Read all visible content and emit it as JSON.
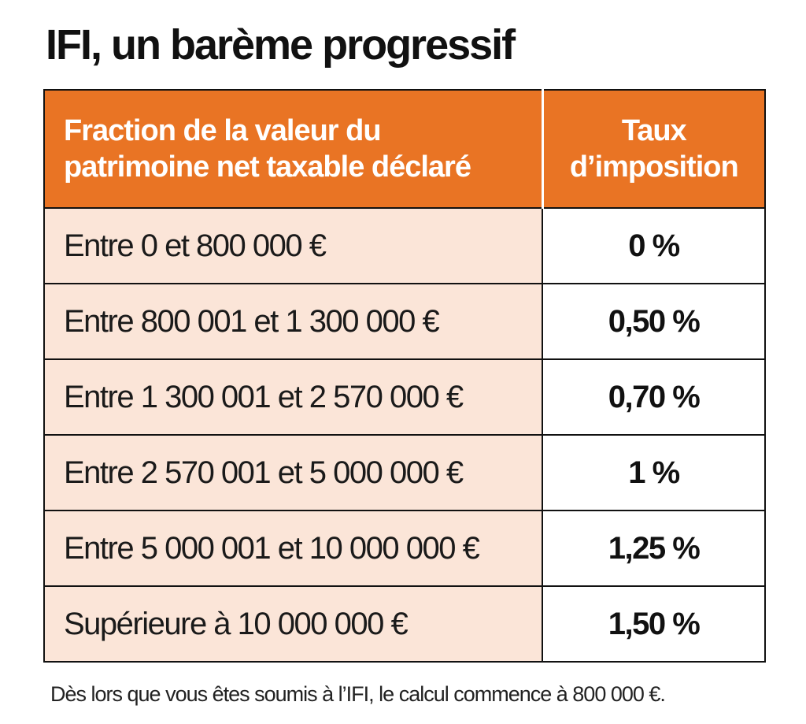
{
  "title": "IFI, un barème progressif",
  "table": {
    "header": {
      "fraction_lines": [
        "Fraction de la valeur du",
        "patrimoine net taxable déclaré"
      ],
      "rate_lines": [
        "Taux",
        "d’imposition"
      ]
    },
    "rows": [
      {
        "range": "Entre 0 et 800 000 €",
        "rate": "0 %"
      },
      {
        "range": "Entre 800 001 et 1 300 000 €",
        "rate": "0,50 %"
      },
      {
        "range": "Entre 1 300 001 et 2 570 000 €",
        "rate": "0,70 %"
      },
      {
        "range": "Entre 2 570 001 et 5 000 000 €",
        "rate": "1 %"
      },
      {
        "range": "Entre 5 000 001 et 10 000 000 €",
        "rate": "1,25 %"
      },
      {
        "range": "Supérieure à 10 000 000 €",
        "rate": "1,50 %"
      }
    ]
  },
  "footnote": "Dès lors que vous êtes soumis à l’IFI, le calcul commence à 800 000 €.",
  "colors": {
    "header_bg": "#e97424",
    "range_cell_bg": "#fbe5d8",
    "border": "#111111"
  }
}
